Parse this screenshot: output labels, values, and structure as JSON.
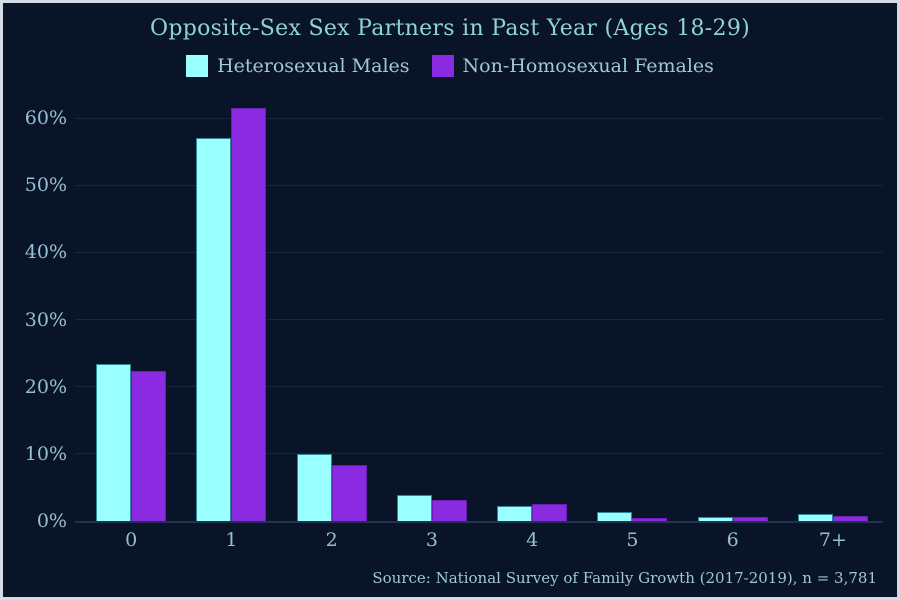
{
  "window": {
    "background_color": "#0a1429",
    "frame_border_color": "#d6dae4"
  },
  "chart_data": {
    "type": "bar",
    "title": "Opposite-Sex Sex Partners in Past Year (Ages 18-29)",
    "title_color": "#8fd3da",
    "categories": [
      "0",
      "1",
      "2",
      "3",
      "4",
      "5",
      "6",
      "7+"
    ],
    "series": [
      {
        "name": "Heterosexual Males",
        "color": "#99ffff",
        "edge_color": "#2f8696",
        "values": [
          23.4,
          57.0,
          10.0,
          3.8,
          2.3,
          1.3,
          0.6,
          1.0
        ]
      },
      {
        "name": "Non-Homosexual Females",
        "color": "#8a2be2",
        "edge_color": "#6a1fb4",
        "values": [
          22.3,
          61.5,
          8.4,
          3.2,
          2.6,
          0.4,
          0.6,
          0.8
        ]
      }
    ],
    "xlabel": "",
    "ylabel": "",
    "y_ticks": [
      "0%",
      "10%",
      "20%",
      "30%",
      "40%",
      "50%",
      "60%"
    ],
    "y_tick_values": [
      0,
      10,
      20,
      30,
      40,
      50,
      60
    ],
    "ylim": [
      0,
      63
    ],
    "grid": true,
    "grid_color": "#1a2440",
    "tick_label_color": "#96c0d2",
    "legend_position": "top-center",
    "source_note": "Source: National Survey of Family Growth (2017-2019), n = 3,781"
  }
}
